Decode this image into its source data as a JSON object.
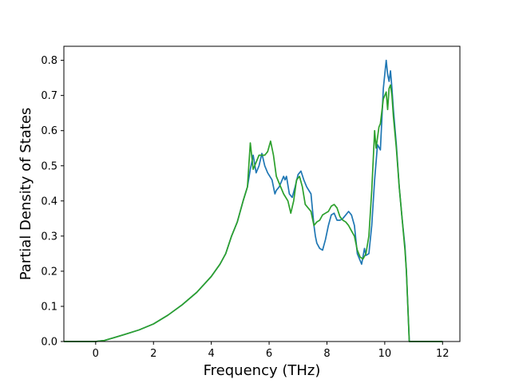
{
  "chart_data": {
    "type": "line",
    "title": "",
    "xlabel": "Frequency (THz)",
    "ylabel": "Partial Density of States",
    "xlim": [
      -1.1,
      12.6
    ],
    "ylim": [
      0.0,
      0.84
    ],
    "xticks": [
      0,
      2,
      4,
      6,
      8,
      10,
      12
    ],
    "yticks": [
      0.0,
      0.1,
      0.2,
      0.3,
      0.4,
      0.5,
      0.6,
      0.7,
      0.8
    ],
    "xtick_labels": [
      "0",
      "2",
      "4",
      "6",
      "8",
      "10",
      "12"
    ],
    "ytick_labels": [
      "0.0",
      "0.1",
      "0.2",
      "0.3",
      "0.4",
      "0.5",
      "0.6",
      "0.7",
      "0.8"
    ],
    "grid": false,
    "legend": "none",
    "series": [
      {
        "color": "#1f77b4",
        "x": [
          -1.1,
          0.0,
          0.3,
          0.6,
          1.0,
          1.5,
          2.0,
          2.5,
          3.0,
          3.5,
          4.0,
          4.3,
          4.5,
          4.7,
          4.9,
          5.1,
          5.25,
          5.35,
          5.45,
          5.55,
          5.65,
          5.75,
          5.85,
          5.95,
          6.1,
          6.2,
          6.25,
          6.35,
          6.5,
          6.55,
          6.6,
          6.7,
          6.8,
          6.9,
          7.0,
          7.1,
          7.2,
          7.3,
          7.45,
          7.55,
          7.6,
          7.65,
          7.75,
          7.85,
          7.95,
          8.05,
          8.15,
          8.25,
          8.35,
          8.45,
          8.55,
          8.65,
          8.75,
          8.85,
          8.95,
          9.05,
          9.2,
          9.3,
          9.35,
          9.45,
          9.55,
          9.65,
          9.75,
          9.85,
          9.95,
          10.05,
          10.1,
          10.15,
          10.2,
          10.25,
          10.3,
          10.4,
          10.5,
          10.6,
          10.7,
          10.75,
          10.8,
          10.85,
          10.9,
          11.0,
          11.5,
          12.0
        ],
        "values": [
          0.0,
          0.0,
          0.003,
          0.01,
          0.02,
          0.033,
          0.05,
          0.075,
          0.105,
          0.14,
          0.185,
          0.22,
          0.25,
          0.3,
          0.34,
          0.4,
          0.44,
          0.49,
          0.53,
          0.48,
          0.5,
          0.535,
          0.5,
          0.48,
          0.46,
          0.42,
          0.43,
          0.44,
          0.47,
          0.46,
          0.47,
          0.42,
          0.41,
          0.44,
          0.475,
          0.485,
          0.46,
          0.44,
          0.42,
          0.33,
          0.3,
          0.28,
          0.265,
          0.26,
          0.29,
          0.33,
          0.36,
          0.365,
          0.345,
          0.345,
          0.35,
          0.36,
          0.37,
          0.36,
          0.33,
          0.25,
          0.22,
          0.265,
          0.245,
          0.25,
          0.33,
          0.46,
          0.56,
          0.545,
          0.72,
          0.8,
          0.76,
          0.74,
          0.77,
          0.72,
          0.66,
          0.56,
          0.44,
          0.35,
          0.27,
          0.2,
          0.1,
          0.0,
          0.0,
          0.0,
          0.0,
          0.0
        ]
      },
      {
        "color": "#2ca02c",
        "x": [
          -1.1,
          0.0,
          0.3,
          0.6,
          1.0,
          1.5,
          2.0,
          2.5,
          3.0,
          3.5,
          4.0,
          4.3,
          4.5,
          4.7,
          4.9,
          5.1,
          5.25,
          5.35,
          5.45,
          5.55,
          5.65,
          5.75,
          5.85,
          5.95,
          6.05,
          6.15,
          6.25,
          6.35,
          6.5,
          6.65,
          6.75,
          6.85,
          6.95,
          7.05,
          7.15,
          7.25,
          7.35,
          7.45,
          7.55,
          7.65,
          7.75,
          7.85,
          7.95,
          8.05,
          8.15,
          8.25,
          8.35,
          8.45,
          8.55,
          8.65,
          8.75,
          8.85,
          8.95,
          9.05,
          9.15,
          9.25,
          9.35,
          9.45,
          9.55,
          9.65,
          9.7,
          9.75,
          9.8,
          9.85,
          9.95,
          10.05,
          10.1,
          10.15,
          10.2,
          10.25,
          10.3,
          10.4,
          10.5,
          10.6,
          10.7,
          10.75,
          10.8,
          10.85,
          10.9,
          11.0,
          11.5,
          12.0
        ],
        "values": [
          0.0,
          0.0,
          0.003,
          0.01,
          0.02,
          0.033,
          0.05,
          0.075,
          0.105,
          0.14,
          0.185,
          0.22,
          0.25,
          0.3,
          0.34,
          0.4,
          0.44,
          0.565,
          0.49,
          0.51,
          0.53,
          0.53,
          0.53,
          0.54,
          0.57,
          0.53,
          0.47,
          0.45,
          0.42,
          0.4,
          0.365,
          0.4,
          0.46,
          0.47,
          0.44,
          0.39,
          0.38,
          0.37,
          0.33,
          0.34,
          0.345,
          0.36,
          0.365,
          0.37,
          0.385,
          0.39,
          0.38,
          0.355,
          0.345,
          0.34,
          0.33,
          0.315,
          0.3,
          0.26,
          0.24,
          0.235,
          0.25,
          0.3,
          0.43,
          0.6,
          0.55,
          0.58,
          0.61,
          0.62,
          0.69,
          0.71,
          0.66,
          0.72,
          0.73,
          0.7,
          0.64,
          0.55,
          0.44,
          0.35,
          0.26,
          0.2,
          0.1,
          0.0,
          0.0,
          0.0,
          0.0,
          0.0
        ]
      }
    ]
  }
}
